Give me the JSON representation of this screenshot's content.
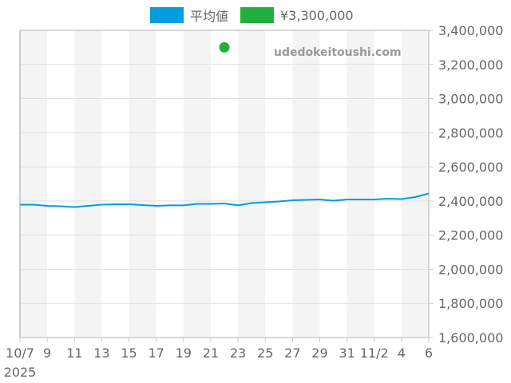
{
  "legend": [
    {
      "label": "平均値",
      "color": "#009de0"
    },
    {
      "label": "¥3,300,000",
      "color": "#21b03c"
    }
  ],
  "watermark": "udedokeitoushi.com",
  "colors": {
    "line": "#009de0",
    "dot": "#21b03c",
    "band": "#f4f4f4",
    "grid": "#e0e0e0",
    "axis": "#cccccc",
    "text": "#666666"
  },
  "chart_data": {
    "type": "line",
    "title": "",
    "xlabel": "",
    "ylabel": "",
    "ylim": [
      1600000,
      3400000
    ],
    "yticks": [
      "1,600,000",
      "1,800,000",
      "2,000,000",
      "2,200,000",
      "2,400,000",
      "2,600,000",
      "2,800,000",
      "3,000,000",
      "3,200,000",
      "3,400,000"
    ],
    "xticks": [
      {
        "day": 0,
        "label": "10/7",
        "sublabel": "2025"
      },
      {
        "day": 2,
        "label": "9"
      },
      {
        "day": 4,
        "label": "11"
      },
      {
        "day": 6,
        "label": "13"
      },
      {
        "day": 8,
        "label": "15"
      },
      {
        "day": 10,
        "label": "17"
      },
      {
        "day": 12,
        "label": "19"
      },
      {
        "day": 14,
        "label": "21"
      },
      {
        "day": 16,
        "label": "23"
      },
      {
        "day": 18,
        "label": "25"
      },
      {
        "day": 20,
        "label": "27"
      },
      {
        "day": 22,
        "label": "29"
      },
      {
        "day": 24,
        "label": "31"
      },
      {
        "day": 26,
        "label": "11/2"
      },
      {
        "day": 28,
        "label": "4"
      },
      {
        "day": 30,
        "label": "6"
      }
    ],
    "x": [
      "10/7",
      "10/8",
      "10/9",
      "10/10",
      "10/11",
      "10/12",
      "10/13",
      "10/14",
      "10/15",
      "10/16",
      "10/17",
      "10/18",
      "10/19",
      "10/20",
      "10/21",
      "10/22",
      "10/23",
      "10/24",
      "10/25",
      "10/26",
      "10/27",
      "10/28",
      "10/29",
      "10/30",
      "10/31",
      "11/1",
      "11/2",
      "11/3",
      "11/4",
      "11/5",
      "11/6"
    ],
    "series": [
      {
        "name": "平均値",
        "values": [
          2378500,
          2378500,
          2371500,
          2369000,
          2364500,
          2371500,
          2378500,
          2381000,
          2381000,
          2376000,
          2371500,
          2374000,
          2374000,
          2383000,
          2383000,
          2385500,
          2374000,
          2388000,
          2392500,
          2397000,
          2404000,
          2406500,
          2409000,
          2402000,
          2409000,
          2409000,
          2409000,
          2413500,
          2411000,
          2423000,
          2444000
        ]
      },
      {
        "name": "¥3,300,000",
        "type": "scatter",
        "points": [
          {
            "x": "10/22",
            "y": 3300000
          }
        ]
      }
    ],
    "grid": true,
    "legend_position": "top"
  }
}
